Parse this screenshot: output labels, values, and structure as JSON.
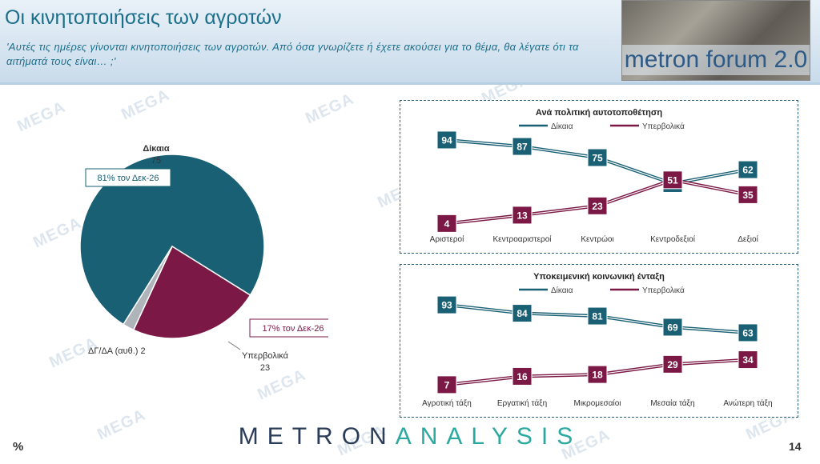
{
  "header": {
    "title": "Οι κινητοποιήσεις των αγροτών",
    "subtitle": "'Αυτές τις ημέρες γίνονται κινητοποιήσεις των αγροτών. Από όσα γνωρίζετε ή έχετε ακούσει για το θέμα, θα λέγατε ότι τα αιτήματά τους είναι… ;'",
    "logo_text": "metron forum 2.0"
  },
  "watermark": "MEGA",
  "footer": {
    "brand_part1": "METRON",
    "brand_part2": "ANALYSIS",
    "unit": "%",
    "page_number": "14"
  },
  "colors": {
    "fair": "#1a6075",
    "exaggerated": "#7b1845",
    "dk": "#aeb4b9",
    "title": "#1b6f8a"
  },
  "chart_data": [
    {
      "type": "pie",
      "slices": [
        {
          "label": "Δίκαια",
          "value": 75,
          "callout": "81% τον Δεκ-26"
        },
        {
          "label": "Υπερβολικά",
          "value": 23,
          "callout": "17% τον Δεκ-26"
        },
        {
          "label": "ΔΓ/ΔΑ (αυθ.)",
          "value": 2
        }
      ]
    },
    {
      "type": "line",
      "title": "Ανά πολιτική αυτοτοποθέτηση",
      "categories": [
        "Αριστεροί",
        "Κεντροαριστεροί",
        "Κεντρώοι",
        "Κεντροδεξιοί",
        "Δεξιοί"
      ],
      "series": [
        {
          "name": "Δίκαια",
          "values": [
            94,
            87,
            75,
            47,
            62
          ]
        },
        {
          "name": "Υπερβολικά",
          "values": [
            4,
            13,
            23,
            51,
            35
          ]
        }
      ]
    },
    {
      "type": "line",
      "title": "Υποκειμενική κοινωνική ένταξη",
      "categories": [
        "Αγροτική τάξη",
        "Εργατική τάξη",
        "Μικρομεσαίοι",
        "Μεσαία τάξη",
        "Ανώτερη τάξη"
      ],
      "series": [
        {
          "name": "Δίκαια",
          "values": [
            93,
            84,
            81,
            69,
            63
          ]
        },
        {
          "name": "Υπερβολικά",
          "values": [
            7,
            16,
            18,
            29,
            34
          ]
        }
      ]
    }
  ]
}
